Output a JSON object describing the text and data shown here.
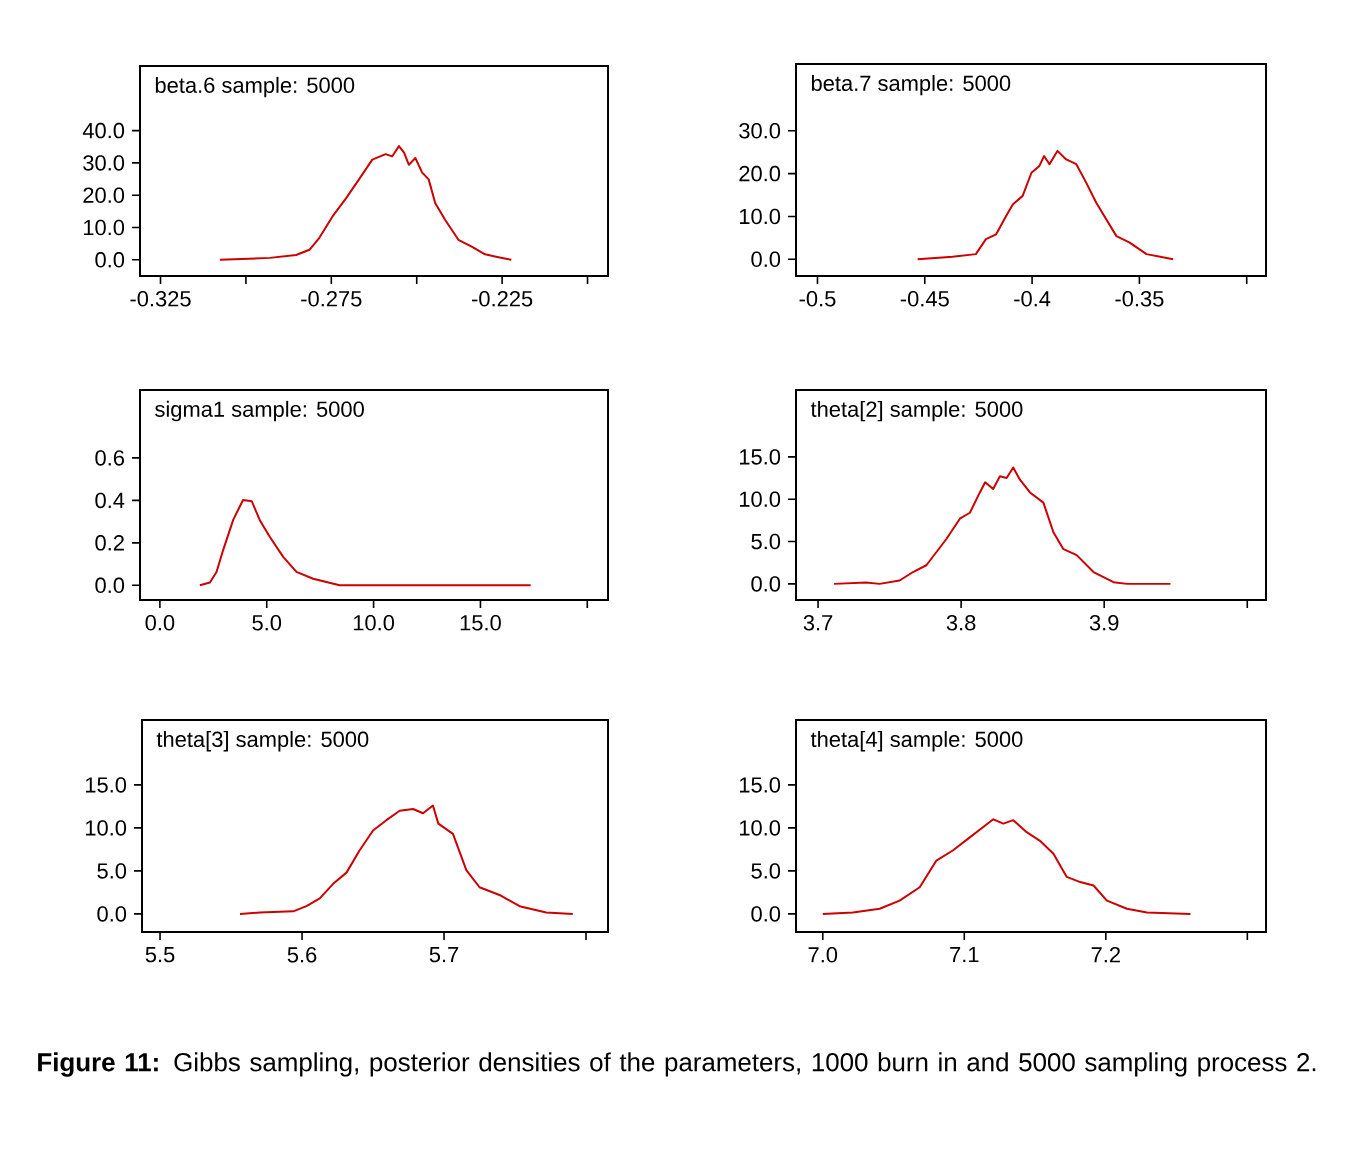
{
  "chart_data": [
    {
      "type": "line",
      "title": "beta.6 sample: 5000",
      "xlim": [
        -0.331,
        -0.194
      ],
      "ylim": [
        -5,
        60
      ],
      "marker": "none",
      "line_style": "solid",
      "xticks": [
        -0.325,
        {
          "value": -0.3,
          "label": null
        },
        -0.275,
        {
          "value": -0.25,
          "label": null
        },
        -0.225,
        {
          "value": -0.2,
          "label": null
        }
      ],
      "yticks": [
        {
          "value": 0,
          "label": "0.0"
        },
        {
          "value": 10,
          "label": "10.0"
        },
        {
          "value": 20,
          "label": "20.0"
        },
        {
          "value": 30,
          "label": "30.0"
        },
        {
          "value": 40,
          "label": "40.0"
        }
      ],
      "series": [
        {
          "color": "#cc0000",
          "x": [
            -0.3076,
            -0.293,
            -0.2853,
            -0.2814,
            -0.2785,
            -0.2746,
            -0.2707,
            -0.2669,
            -0.263,
            -0.2591,
            -0.2572,
            -0.2552,
            -0.2537,
            -0.2523,
            -0.2504,
            -0.2484,
            -0.2465,
            -0.2446,
            -0.2417,
            -0.2378,
            -0.2339,
            -0.23,
            -0.2261,
            -0.2223
          ],
          "values": [
            0,
            0.6,
            1.5,
            3.1,
            6.8,
            13.5,
            19,
            24.9,
            31,
            32.7,
            32,
            35.2,
            33.2,
            29.4,
            31.5,
            27,
            24.9,
            17.6,
            12.4,
            6.2,
            4.1,
            1.7,
            0.8,
            0
          ]
        }
      ]
    },
    {
      "type": "line",
      "title": "beta.7 sample: 5000",
      "xlim": [
        -0.51,
        -0.291
      ],
      "ylim": [
        -3.9,
        45.6
      ],
      "marker": "none",
      "line_style": "solid",
      "xticks": [
        -0.5,
        -0.45,
        -0.4,
        -0.35,
        {
          "value": -0.3,
          "label": null
        }
      ],
      "yticks": [
        {
          "value": 0,
          "label": "0.0"
        },
        {
          "value": 10,
          "label": "10.0"
        },
        {
          "value": 20,
          "label": "20.0"
        },
        {
          "value": 30,
          "label": "30.0"
        }
      ],
      "series": [
        {
          "color": "#cc0000",
          "x": [
            -0.4533,
            -0.4371,
            -0.4262,
            -0.4215,
            -0.4168,
            -0.4121,
            -0.409,
            -0.4044,
            -0.4003,
            -0.3966,
            -0.3944,
            -0.3919,
            -0.3882,
            -0.3841,
            -0.3794,
            -0.3748,
            -0.3701,
            -0.3654,
            -0.3607,
            -0.3545,
            -0.3467,
            -0.3343
          ],
          "values": [
            0,
            0.6,
            1.2,
            4.7,
            5.8,
            10.1,
            12.8,
            14.8,
            20.2,
            21.8,
            24.1,
            22.2,
            25.3,
            23.3,
            22.2,
            17.9,
            13.2,
            9.3,
            5.4,
            3.9,
            1.2,
            0
          ]
        }
      ]
    },
    {
      "type": "line",
      "title": "sigma1 sample: 5000",
      "xlim": [
        -0.93,
        20.97
      ],
      "ylim": [
        -0.069,
        0.92
      ],
      "marker": "none",
      "line_style": "solid",
      "xticks": [
        {
          "value": 0,
          "label": "0.0"
        },
        {
          "value": 5,
          "label": "5.0"
        },
        {
          "value": 10,
          "label": "10.0"
        },
        {
          "value": 15,
          "label": "15.0"
        },
        {
          "value": 20,
          "label": null
        }
      ],
      "yticks": [
        {
          "value": 0,
          "label": "0.0"
        },
        0.2,
        0.4,
        0.6
      ],
      "series": [
        {
          "color": "#cc0000",
          "x": [
            1.87,
            2.34,
            2.65,
            2.96,
            3.43,
            3.89,
            4.3,
            4.67,
            5.14,
            5.76,
            6.39,
            7.17,
            8.41,
            17.35
          ],
          "values": [
            0,
            0.013,
            0.063,
            0.166,
            0.308,
            0.402,
            0.396,
            0.308,
            0.229,
            0.135,
            0.063,
            0.031,
            0,
            0
          ]
        }
      ]
    },
    {
      "type": "line",
      "title": "theta[2] sample: 5000",
      "xlim": [
        3.6846,
        4.0131
      ],
      "ylim": [
        -1.9,
        22.9
      ],
      "marker": "none",
      "line_style": "solid",
      "xticks": [
        3.7,
        3.8,
        3.9,
        {
          "value": 4.0,
          "label": null
        }
      ],
      "yticks": [
        {
          "value": 0,
          "label": "0.0"
        },
        {
          "value": 5,
          "label": "5.0"
        },
        {
          "value": 10,
          "label": "10.0"
        },
        {
          "value": 15,
          "label": "15.0"
        }
      ],
      "series": [
        {
          "color": "#cc0000",
          "x": [
            3.7112,
            3.7336,
            3.743,
            3.757,
            3.7664,
            3.7757,
            3.7827,
            3.7897,
            3.7991,
            3.8061,
            3.8131,
            3.8168,
            3.8224,
            3.8271,
            3.8318,
            3.8364,
            3.8411,
            3.8481,
            3.8575,
            3.8645,
            3.8715,
            3.8808,
            3.8925,
            3.9065,
            3.9159,
            3.9463
          ],
          "values": [
            0,
            0.16,
            0,
            0.4,
            1.4,
            2.2,
            3.75,
            5.3,
            7.7,
            8.4,
            10.8,
            12,
            11.2,
            12.7,
            12.5,
            13.75,
            12.3,
            10.8,
            9.6,
            6.1,
            4.1,
            3.4,
            1.4,
            0.2,
            0,
            0
          ]
        }
      ]
    },
    {
      "type": "line",
      "title": "theta[3] sample: 5000",
      "xlim": [
        5.4873,
        5.8155
      ],
      "ylim": [
        -2.1,
        22.55
      ],
      "marker": "none",
      "line_style": "solid",
      "xticks": [
        5.5,
        5.6,
        5.7,
        {
          "value": 5.8,
          "label": null
        }
      ],
      "yticks": [
        {
          "value": 0,
          "label": "0.0"
        },
        {
          "value": 5,
          "label": "5.0"
        },
        {
          "value": 10,
          "label": "10.0"
        },
        {
          "value": 15,
          "label": "15.0"
        }
      ],
      "series": [
        {
          "color": "#cc0000",
          "x": [
            5.5563,
            5.5703,
            5.5938,
            5.6031,
            5.6125,
            5.6219,
            5.6313,
            5.6406,
            5.65,
            5.6594,
            5.6688,
            5.6782,
            5.6852,
            5.6922,
            5.696,
            5.7063,
            5.7157,
            5.725,
            5.7391,
            5.7532,
            5.772,
            5.7907
          ],
          "values": [
            0,
            0.16,
            0.3,
            0.9,
            1.8,
            3.5,
            4.8,
            7.4,
            9.7,
            10.9,
            12,
            12.2,
            11.7,
            12.6,
            10.5,
            9.3,
            5.1,
            3.1,
            2.2,
            0.9,
            0.16,
            0
          ]
        }
      ]
    },
    {
      "type": "line",
      "title": "theta[4] sample: 5000",
      "xlim": [
        6.9811,
        7.3132
      ],
      "ylim": [
        -2.1,
        22.55
      ],
      "marker": "none",
      "line_style": "solid",
      "xticks": [
        {
          "value": 7.0,
          "label": "7.0"
        },
        7.1,
        7.2,
        {
          "value": 7.3,
          "label": null
        }
      ],
      "yticks": [
        {
          "value": 0,
          "label": "0.0"
        },
        {
          "value": 5,
          "label": "5.0"
        },
        {
          "value": 10,
          "label": "10.0"
        },
        {
          "value": 15,
          "label": "15.0"
        }
      ],
      "annotations": [
        "**Figure 11:** Gibbs sampling, posterior densities of the parameters, 1000 burn in and 5000 sampling process 2."
      ],
      "series": [
        {
          "color": "#cc0000",
          "x": [
            7.0,
            7.0213,
            7.0402,
            7.0543,
            7.0685,
            7.0803,
            7.0921,
            7.1039,
            7.1134,
            7.1205,
            7.1276,
            7.1346,
            7.1441,
            7.1535,
            7.163,
            7.1724,
            7.1819,
            7.1913,
            7.2008,
            7.2149,
            7.2291,
            7.2598
          ],
          "values": [
            0,
            0.16,
            0.6,
            1.55,
            3.1,
            6.2,
            7.4,
            8.9,
            10.1,
            11,
            10.5,
            10.9,
            9.5,
            8.5,
            7,
            4.3,
            3.7,
            3.3,
            1.55,
            0.6,
            0.16,
            0
          ]
        }
      ]
    }
  ]
}
